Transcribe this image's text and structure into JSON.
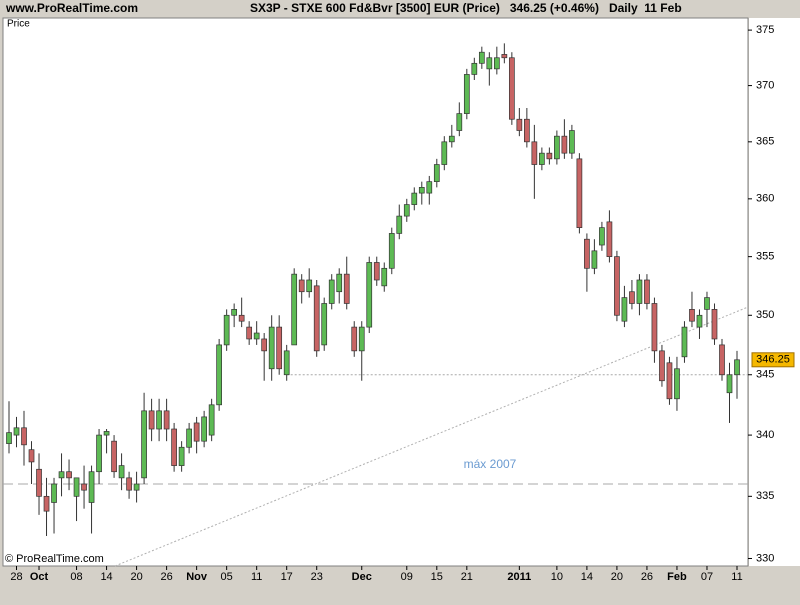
{
  "chart_data": {
    "type": "candlestick",
    "source": "www.ProRealTime.com",
    "title": "SX3P - STXE 600 Fd&Bvr [3500] EUR (Price)   346.25 (+0.46%)   Daily  11 Feb",
    "panel_label": "Price",
    "watermark": "© ProRealTime.com",
    "ylog": true,
    "ylim": [
      329.4,
      376.1
    ],
    "yticks": [
      330,
      335,
      340,
      345,
      350,
      355,
      360,
      365,
      370,
      375
    ],
    "up_color": "#5dba54",
    "down_color": "#c76464",
    "levels": [
      {
        "value": 345,
        "from": 37,
        "style": "dotted"
      },
      {
        "value": 336,
        "style": "dashed",
        "label": "máx 2007"
      }
    ],
    "categories": [
      null,
      "28",
      null,
      null,
      "Oct",
      null,
      null,
      null,
      null,
      "08",
      null,
      null,
      null,
      "14",
      null,
      null,
      null,
      "20",
      null,
      null,
      null,
      "26",
      null,
      null,
      null,
      "Nov",
      null,
      null,
      null,
      "05",
      null,
      null,
      null,
      "11",
      null,
      null,
      null,
      "17",
      null,
      null,
      null,
      "23",
      null,
      null,
      null,
      null,
      null,
      "Dec",
      null,
      null,
      null,
      null,
      null,
      "09",
      null,
      null,
      null,
      "15",
      null,
      null,
      null,
      "21",
      null,
      null,
      null,
      null,
      null,
      null,
      "2011",
      null,
      null,
      null,
      null,
      "10",
      null,
      null,
      null,
      "14",
      null,
      null,
      null,
      "20",
      null,
      null,
      null,
      "26",
      null,
      null,
      null,
      "Feb",
      null,
      null,
      null,
      "07",
      null,
      null,
      null,
      "11"
    ],
    "open": [
      339.3,
      340.0,
      340.6,
      338.8,
      337.2,
      335.0,
      334.5,
      336.5,
      337.0,
      335.0,
      336.0,
      334.5,
      337.0,
      340.0,
      339.5,
      336.5,
      336.5,
      335.5,
      336.5,
      342.0,
      340.5,
      342.0,
      340.5,
      337.5,
      339.0,
      341.0,
      339.5,
      340.0,
      342.5,
      347.5,
      350.0,
      350.0,
      349.0,
      348.0,
      348.0,
      345.5,
      349.0,
      345.0,
      347.5,
      353.0,
      352.0,
      352.5,
      347.5,
      351.0,
      352.0,
      353.5,
      349.0,
      347.0,
      349.0,
      354.5,
      352.5,
      354.0,
      357.0,
      358.5,
      359.5,
      360.5,
      360.5,
      361.5,
      363.0,
      365.0,
      366.0,
      367.5,
      371.0,
      372.0,
      371.5,
      371.5,
      372.8,
      372.5,
      367.0,
      367.0,
      365.0,
      363.0,
      364.0,
      363.5,
      365.5,
      364.0,
      363.5,
      356.5,
      354.0,
      356.0,
      358.0,
      355.0,
      349.5,
      352.0,
      351.0,
      353.0,
      351.0,
      347.0,
      346.0,
      343.0,
      346.5,
      350.5,
      349.0,
      350.5,
      350.5,
      347.5,
      343.5,
      345.0
    ],
    "high": [
      342.8,
      341.5,
      342.0,
      339.5,
      338.5,
      336.5,
      336.5,
      338.5,
      338.0,
      336.5,
      337.5,
      337.5,
      340.5,
      340.5,
      340.0,
      338.5,
      337.0,
      337.0,
      343.5,
      343.0,
      343.0,
      343.0,
      341.0,
      339.5,
      341.0,
      341.5,
      342.0,
      343.0,
      348.0,
      350.5,
      351.0,
      351.5,
      349.5,
      349.5,
      348.5,
      350.0,
      350.0,
      347.5,
      354.0,
      353.5,
      354.0,
      353.0,
      351.5,
      353.5,
      354.0,
      355.0,
      349.5,
      349.5,
      355.0,
      355.0,
      354.5,
      357.5,
      359.5,
      360.0,
      361.0,
      361.5,
      362.0,
      363.5,
      365.5,
      366.5,
      368.5,
      371.5,
      372.5,
      373.5,
      373.0,
      373.5,
      373.8,
      373.0,
      368.0,
      368.0,
      366.5,
      364.5,
      364.5,
      366.0,
      367.0,
      366.5,
      364.0,
      357.0,
      356.5,
      358.0,
      359.0,
      355.5,
      352.5,
      353.0,
      353.5,
      353.5,
      351.5,
      347.5,
      346.5,
      346.5,
      349.5,
      352.0,
      350.5,
      352.0,
      351.0,
      348.0,
      346.0,
      347.0
    ],
    "low": [
      338.5,
      339.0,
      337.5,
      336.0,
      333.5,
      331.8,
      332.0,
      335.0,
      335.5,
      333.0,
      334.0,
      332.0,
      336.0,
      338.5,
      336.5,
      335.5,
      334.8,
      334.5,
      336.0,
      339.5,
      339.5,
      339.5,
      337.0,
      337.0,
      338.5,
      338.5,
      339.0,
      339.5,
      342.0,
      347.0,
      349.0,
      349.0,
      347.5,
      347.5,
      344.5,
      344.5,
      345.0,
      344.5,
      347.5,
      351.0,
      351.5,
      346.5,
      347.0,
      350.5,
      351.0,
      350.5,
      346.5,
      344.5,
      348.5,
      352.5,
      352.0,
      353.5,
      356.5,
      358.0,
      359.0,
      359.5,
      359.5,
      361.0,
      362.5,
      364.5,
      365.5,
      367.0,
      370.5,
      371.5,
      370.0,
      371.0,
      372.0,
      366.5,
      365.5,
      364.5,
      360.0,
      362.5,
      363.0,
      363.0,
      363.5,
      363.5,
      357.0,
      352.0,
      353.5,
      355.5,
      354.5,
      349.5,
      349.0,
      350.5,
      350.0,
      350.5,
      346.0,
      344.0,
      342.5,
      342.0,
      346.0,
      349.0,
      348.0,
      349.0,
      347.5,
      344.5,
      341.0,
      343.0
    ],
    "close": [
      340.2,
      340.6,
      339.2,
      337.8,
      335.0,
      333.8,
      336.0,
      337.0,
      336.5,
      336.5,
      335.5,
      337.0,
      340.0,
      340.3,
      337.0,
      337.5,
      335.5,
      336.0,
      342.0,
      340.5,
      342.0,
      340.5,
      337.5,
      339.0,
      340.5,
      339.5,
      341.5,
      342.5,
      347.5,
      350.0,
      350.5,
      349.5,
      348.0,
      348.5,
      347.0,
      349.0,
      345.5,
      347.0,
      353.5,
      352.0,
      353.0,
      347.0,
      351.0,
      353.0,
      353.5,
      351.0,
      347.0,
      349.0,
      354.5,
      353.0,
      354.0,
      357.0,
      358.5,
      359.5,
      360.5,
      361.0,
      361.5,
      363.0,
      365.0,
      365.5,
      367.5,
      371.0,
      372.0,
      373.0,
      372.5,
      372.5,
      372.5,
      367.0,
      366.0,
      365.0,
      363.0,
      364.0,
      363.5,
      365.5,
      364.0,
      366.0,
      357.5,
      354.0,
      355.5,
      357.5,
      355.0,
      350.0,
      351.5,
      351.0,
      353.0,
      351.0,
      347.0,
      344.5,
      343.0,
      345.5,
      349.0,
      349.5,
      350.0,
      351.5,
      348.0,
      345.0,
      345.0,
      346.25
    ]
  }
}
